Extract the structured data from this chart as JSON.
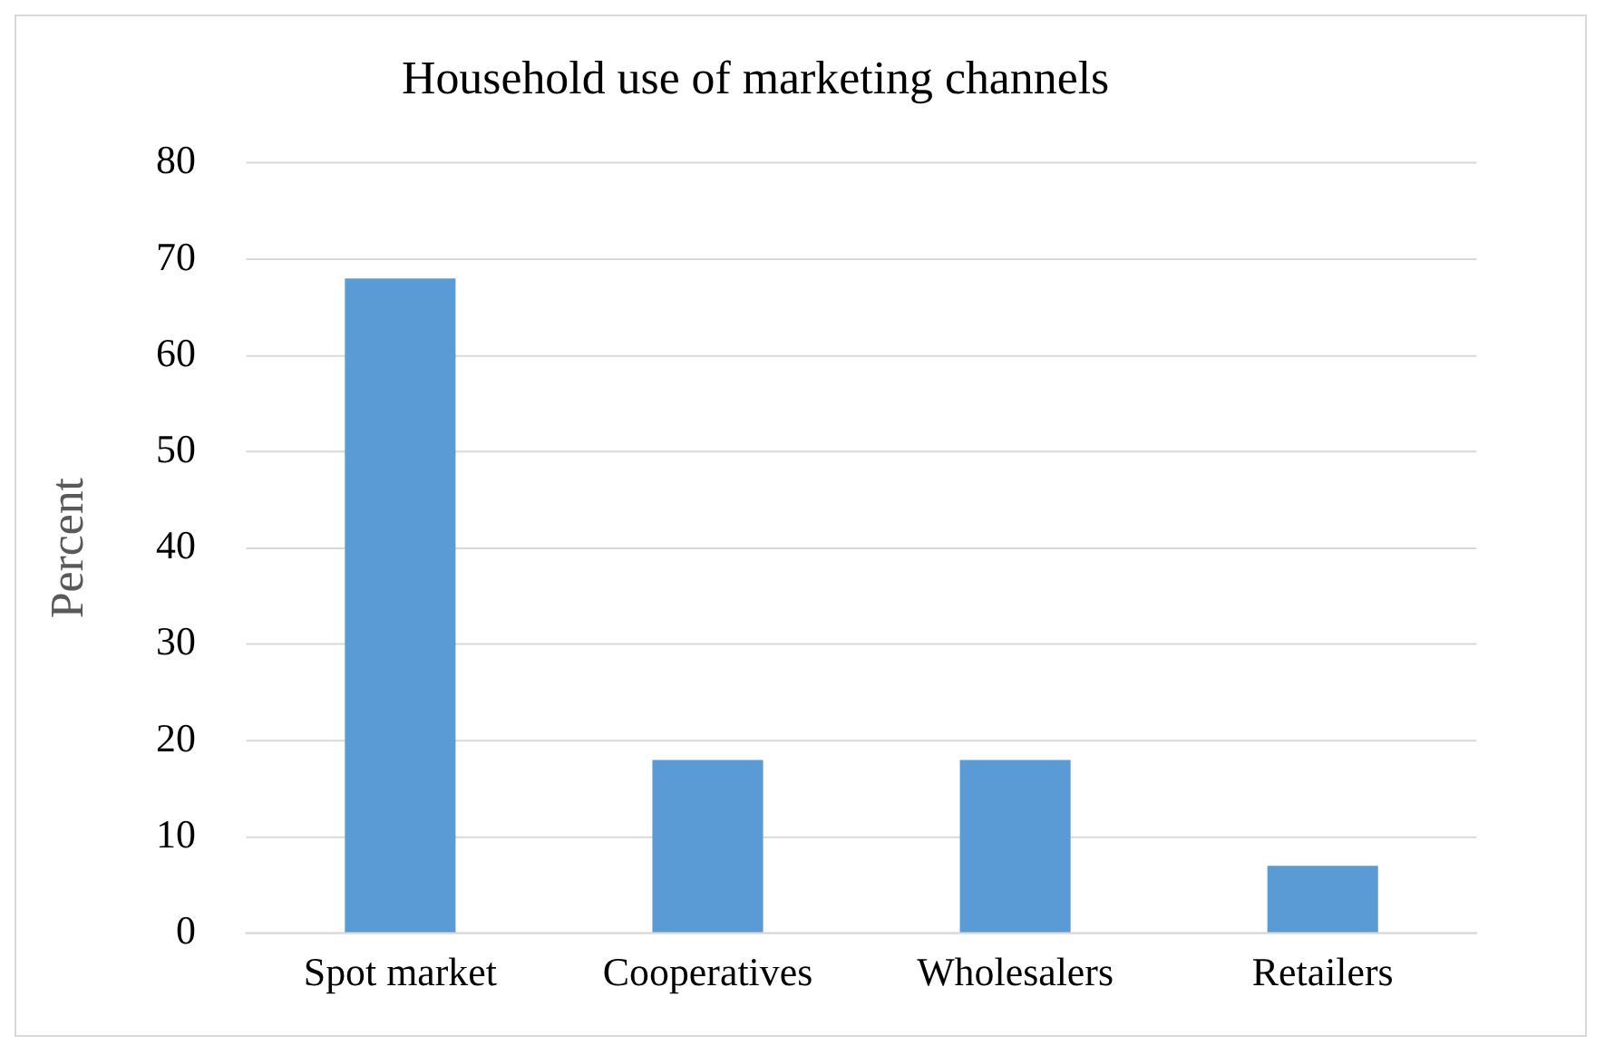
{
  "chart_data": {
    "type": "bar",
    "title": "Household use of marketing channels",
    "ylabel": "Percent",
    "categories": [
      "Spot market",
      "Cooperatives",
      "Wholesalers",
      "Retailers"
    ],
    "values": [
      68,
      18,
      18,
      7
    ],
    "color": "#5b9bd5",
    "ylim": [
      0,
      80
    ],
    "yticks": [
      0,
      10,
      20,
      30,
      40,
      50,
      60,
      70,
      80
    ],
    "grid": "y",
    "legend": false
  }
}
